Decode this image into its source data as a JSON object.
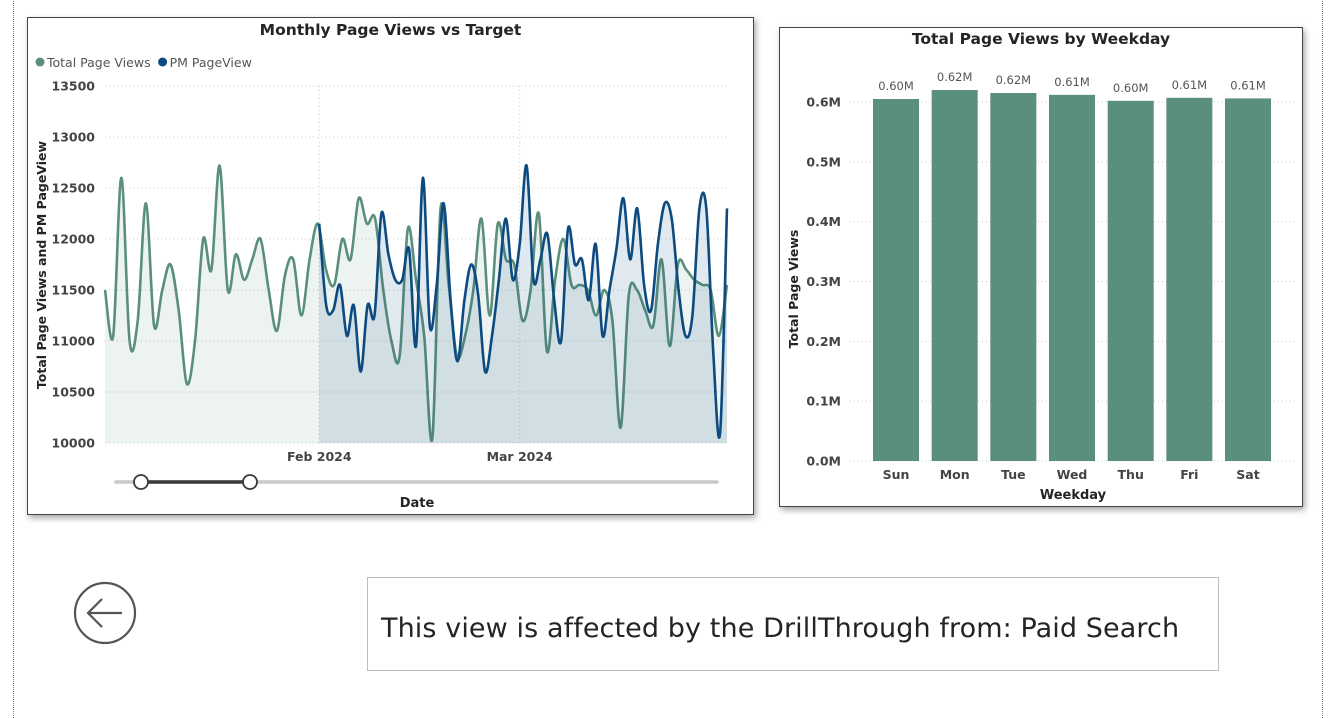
{
  "line_visual": {
    "title": "Monthly Page Views vs Target",
    "legend": [
      {
        "label": "Total Page Views",
        "color": "#5a8f7b"
      },
      {
        "label": "PM PageView",
        "color": "#0c4a80"
      }
    ],
    "xlabel": "Date",
    "ylabel": "Total Page Views and PM PageView"
  },
  "bar_visual": {
    "title": "Total Page Views by Weekday",
    "xlabel": "Weekday",
    "ylabel": "Total Page Views"
  },
  "drill_text": "This view is affected by the DrillThrough from: Paid Search",
  "back_button": {
    "icon": "back-arrow-icon"
  },
  "chart_data": [
    {
      "type": "line",
      "title": "Monthly Page Views vs Target",
      "xlabel": "Date",
      "ylabel": "Total Page Views and PM PageView",
      "x_range": [
        "2024-01-01",
        "2024-03-31"
      ],
      "x_ticks": [
        {
          "date": "2024-02-01",
          "label": "Feb 2024"
        },
        {
          "date": "2024-03-01",
          "label": "Mar 2024"
        }
      ],
      "ylim": [
        10000,
        13500
      ],
      "y_ticks": [
        10000,
        10500,
        11000,
        11500,
        12000,
        12500,
        13000,
        13500
      ],
      "y_tick_labels": [
        "10000",
        "10500",
        "11000",
        "11500",
        "12000",
        "12500",
        "13000",
        "13500"
      ],
      "legend_position": "top-left",
      "grid": true,
      "series": [
        {
          "name": "Total Page Views",
          "color": "#5a8f7b",
          "start_date": "2024-01-01",
          "values": [
            11500,
            11050,
            12600,
            11000,
            11200,
            12350,
            11150,
            11500,
            11750,
            11300,
            10580,
            11000,
            12000,
            11700,
            12720,
            11500,
            11850,
            11600,
            11800,
            12000,
            11500,
            11100,
            11650,
            11800,
            11250,
            11800,
            12150,
            11700,
            11550,
            12000,
            11800,
            12400,
            12150,
            12200,
            11500,
            11000,
            10850,
            12100,
            11600,
            11050,
            10050,
            12300,
            11550,
            10850,
            11050,
            11500,
            12200,
            11250,
            12150,
            11800,
            11750,
            11200,
            11500,
            12250,
            10900,
            11600,
            12000,
            11550,
            11550,
            11500,
            11250,
            11500,
            11200,
            10150,
            11450,
            11500,
            11300,
            11150,
            11800,
            10950,
            11750,
            11700,
            11600,
            11550,
            11500,
            11050,
            11550
          ],
          "end_date": "2024-03-31"
        },
        {
          "name": "PM PageView",
          "color": "#0c4a80",
          "start_date": "2024-02-01",
          "values": [
            12150,
            11350,
            11300,
            11550,
            11050,
            11350,
            10700,
            11350,
            11250,
            12250,
            11850,
            11600,
            11600,
            11900,
            10950,
            12600,
            11150,
            11550,
            12350,
            11400,
            10800,
            11400,
            11750,
            11450,
            10700,
            11050,
            11600,
            12200,
            11600,
            11950,
            12720,
            11600,
            11800,
            12050,
            11400,
            11000,
            12100,
            11750,
            11800,
            11400,
            11950,
            11050,
            11500,
            11900,
            12400,
            11800,
            12300,
            11550,
            11300,
            11950,
            12350,
            12200,
            11500,
            11050,
            11250,
            12300,
            12300,
            10900,
            10100,
            12300
          ],
          "end_date": "2024-03-31"
        }
      ]
    },
    {
      "type": "bar",
      "title": "Total Page Views by Weekday",
      "xlabel": "Weekday",
      "ylabel": "Total Page Views",
      "categories": [
        "Sun",
        "Mon",
        "Tue",
        "Wed",
        "Thu",
        "Fri",
        "Sat"
      ],
      "values": [
        0.605,
        0.62,
        0.615,
        0.612,
        0.602,
        0.607,
        0.606
      ],
      "value_labels": [
        "0.60M",
        "0.62M",
        "0.62M",
        "0.61M",
        "0.60M",
        "0.61M",
        "0.61M"
      ],
      "units": "M",
      "ylim": [
        0,
        0.6
      ],
      "y_ticks": [
        0,
        0.1,
        0.2,
        0.3,
        0.4,
        0.5,
        0.6
      ],
      "y_tick_labels": [
        "0.0M",
        "0.1M",
        "0.2M",
        "0.3M",
        "0.4M",
        "0.5M",
        "0.6M"
      ],
      "color": "#5a8f7b",
      "grid": true
    }
  ]
}
